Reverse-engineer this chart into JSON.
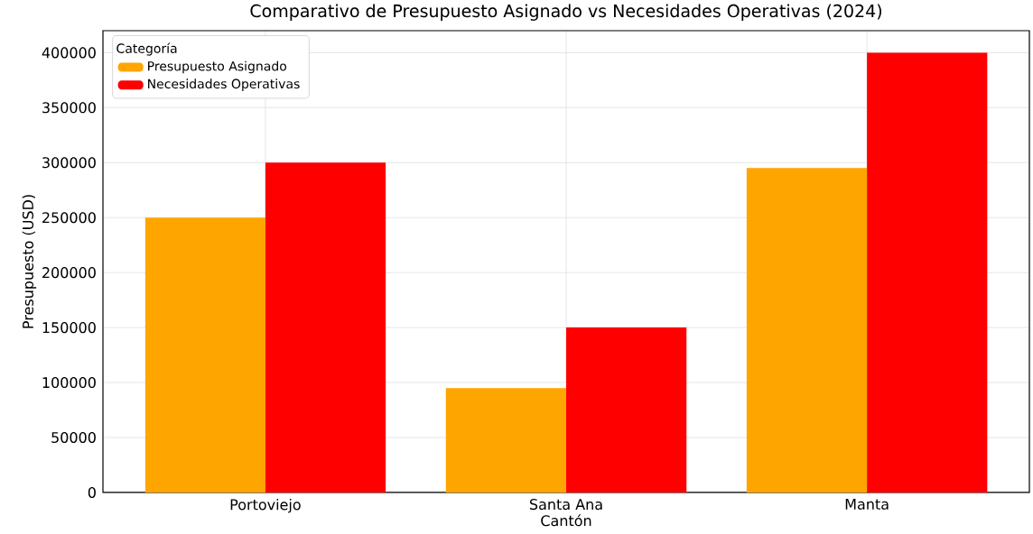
{
  "chart_data": {
    "type": "bar",
    "title": "Comparativo de Presupuesto Asignado vs Necesidades Operativas (2024)",
    "xlabel": "Cantón",
    "ylabel": "Presupuesto (USD)",
    "legend_title": "Categoría",
    "categories": [
      "Portoviejo",
      "Santa Ana",
      "Manta"
    ],
    "series": [
      {
        "name": "Presupuesto Asignado",
        "color": "#ffa500",
        "values": [
          250000,
          95000,
          295000
        ]
      },
      {
        "name": "Necesidades Operativas",
        "color": "#ff0000",
        "values": [
          300000,
          150000,
          400000
        ]
      }
    ],
    "ylim": [
      0,
      420000
    ],
    "yticks": [
      0,
      50000,
      100000,
      150000,
      200000,
      250000,
      300000,
      350000,
      400000
    ],
    "grid": true,
    "legend": "top left"
  }
}
